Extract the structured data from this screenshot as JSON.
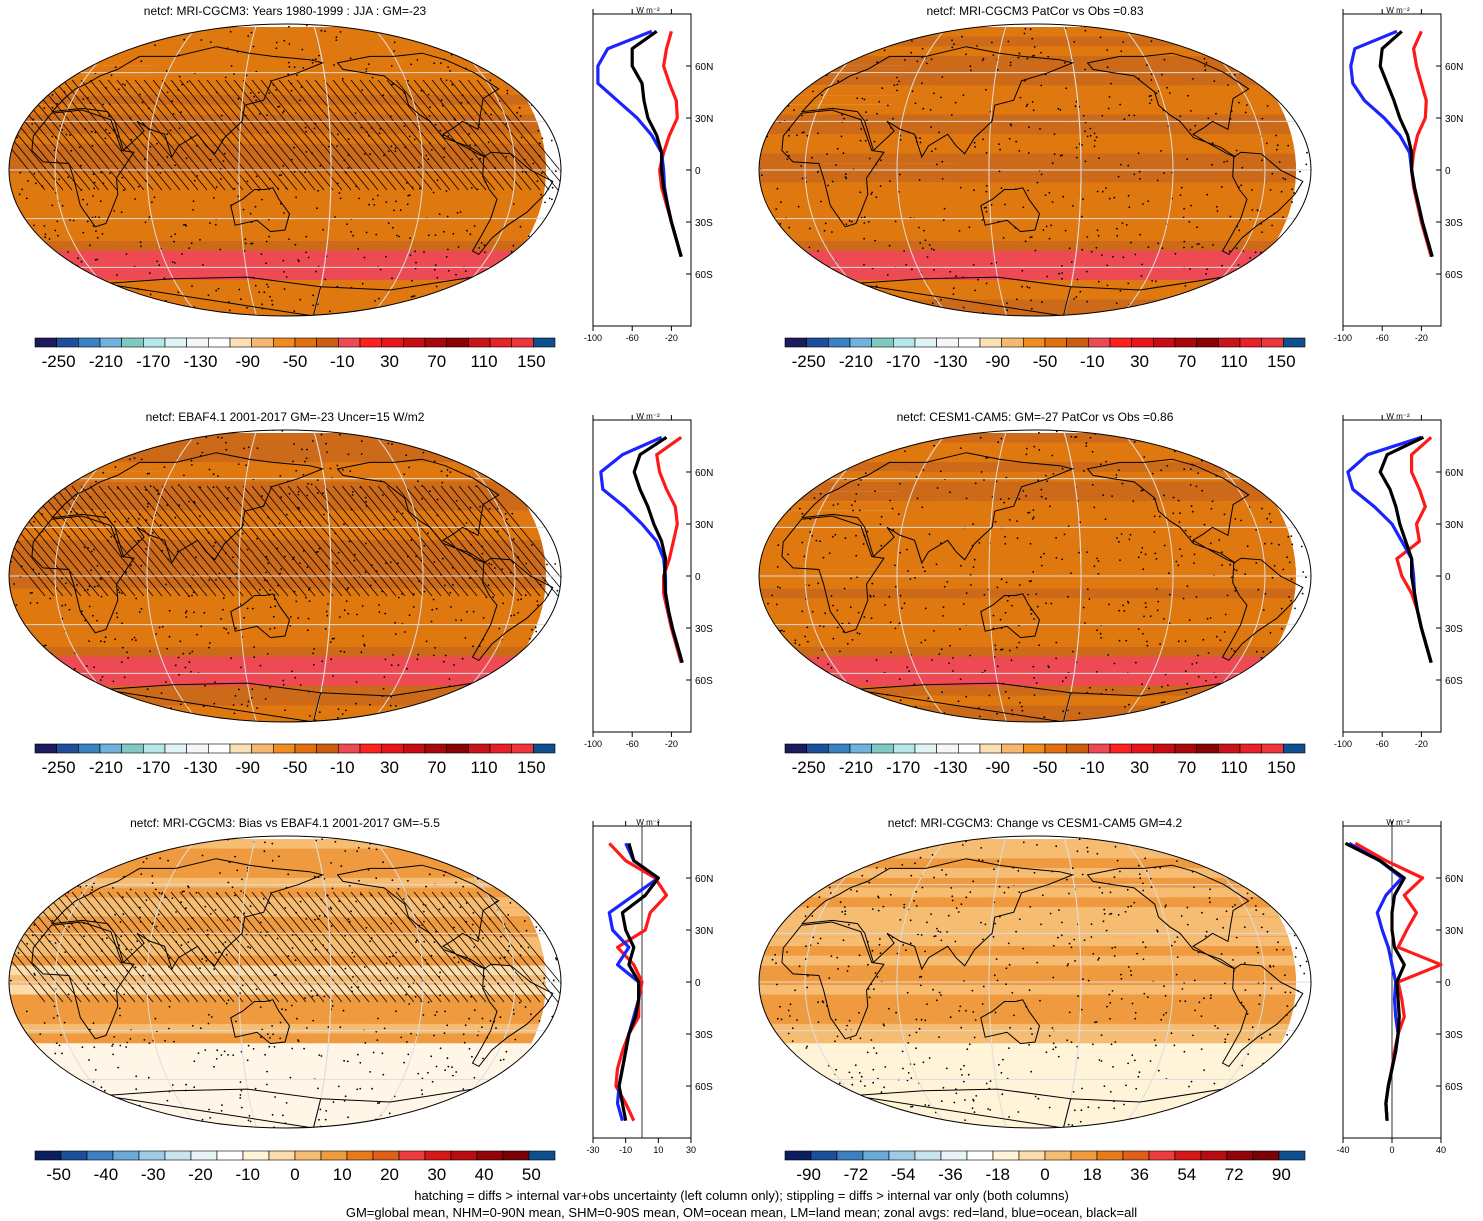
{
  "panels": [
    {
      "id": "model-clim",
      "title": "netcf: MRI-CGCM3: Years 1980-1999 : JJA : GM=-23",
      "field": "clim",
      "hatching": true,
      "colorbar": {
        "labels": [
          "-250",
          "-210",
          "-170",
          "-130",
          "-90",
          "-50",
          "-10",
          "30",
          "70",
          "110",
          "150"
        ],
        "colors": [
          "#1b1b5e",
          "#1d4f9c",
          "#3a82c4",
          "#6fb2dd",
          "#7fcac0",
          "#b5e6ea",
          "#e0f4f6",
          "#f6f6f6",
          "#ffffff",
          "#fbe0b4",
          "#f6b86e",
          "#f08c20",
          "#e07010",
          "#cc5d10",
          "#ee4a54",
          "#ff2020",
          "#e8141a",
          "#c80c12",
          "#a8080a",
          "#8a0204",
          "#c8141a",
          "#e82028",
          "#f0343c",
          "#0e4f8e"
        ]
      },
      "profile": {
        "x_tick_labels": [
          "-100",
          "-60",
          "-20"
        ],
        "y_tick_labels": [
          "60N",
          "30N",
          "0",
          "30S",
          "60S"
        ],
        "unit": "W m⁻²",
        "xlim": [
          -100,
          0
        ]
      }
    },
    {
      "id": "model-patcor",
      "title": "netcf: MRI-CGCM3 PatCor vs Obs =0.83",
      "field": "clim",
      "hatching": false,
      "colorbar": {
        "labels": [
          "-250",
          "-210",
          "-170",
          "-130",
          "-90",
          "-50",
          "-10",
          "30",
          "70",
          "110",
          "150"
        ],
        "colors": [
          "#1b1b5e",
          "#1d4f9c",
          "#3a82c4",
          "#6fb2dd",
          "#7fcac0",
          "#b5e6ea",
          "#e0f4f6",
          "#f6f6f6",
          "#ffffff",
          "#fbe0b4",
          "#f6b86e",
          "#f08c20",
          "#e07010",
          "#cc5d10",
          "#ee4a54",
          "#ff2020",
          "#e8141a",
          "#c80c12",
          "#a8080a",
          "#8a0204",
          "#c8141a",
          "#e82028",
          "#f0343c",
          "#0e4f8e"
        ]
      },
      "profile": {
        "x_tick_labels": [
          "-100",
          "-60",
          "-20"
        ],
        "y_tick_labels": [
          "60N",
          "30N",
          "0",
          "30S",
          "60S"
        ],
        "unit": "W m⁻²",
        "xlim": [
          -100,
          0
        ]
      }
    },
    {
      "id": "obs-clim",
      "title": "netcf: EBAF4.1 2001-2017 GM=-23 Uncer=15 W/m2",
      "field": "clim",
      "hatching": true,
      "colorbar": {
        "labels": [
          "-250",
          "-210",
          "-170",
          "-130",
          "-90",
          "-50",
          "-10",
          "30",
          "70",
          "110",
          "150"
        ],
        "colors": [
          "#1b1b5e",
          "#1d4f9c",
          "#3a82c4",
          "#6fb2dd",
          "#7fcac0",
          "#b5e6ea",
          "#e0f4f6",
          "#f6f6f6",
          "#ffffff",
          "#fbe0b4",
          "#f6b86e",
          "#f08c20",
          "#e07010",
          "#cc5d10",
          "#ee4a54",
          "#ff2020",
          "#e8141a",
          "#c80c12",
          "#a8080a",
          "#8a0204",
          "#c8141a",
          "#e82028",
          "#f0343c",
          "#0e4f8e"
        ]
      },
      "profile": {
        "x_tick_labels": [
          "-100",
          "-60",
          "-20"
        ],
        "y_tick_labels": [
          "60N",
          "30N",
          "0",
          "30S",
          "60S"
        ],
        "unit": "W m⁻²",
        "xlim": [
          -100,
          0
        ]
      }
    },
    {
      "id": "ref-model-clim",
      "title": "netcf: CESM1-CAM5: GM=-27 PatCor vs Obs =0.86",
      "field": "clim",
      "hatching": false,
      "colorbar": {
        "labels": [
          "-250",
          "-210",
          "-170",
          "-130",
          "-90",
          "-50",
          "-10",
          "30",
          "70",
          "110",
          "150"
        ],
        "colors": [
          "#1b1b5e",
          "#1d4f9c",
          "#3a82c4",
          "#6fb2dd",
          "#7fcac0",
          "#b5e6ea",
          "#e0f4f6",
          "#f6f6f6",
          "#ffffff",
          "#fbe0b4",
          "#f6b86e",
          "#f08c20",
          "#e07010",
          "#cc5d10",
          "#ee4a54",
          "#ff2020",
          "#e8141a",
          "#c80c12",
          "#a8080a",
          "#8a0204",
          "#c8141a",
          "#e82028",
          "#f0343c",
          "#0e4f8e"
        ]
      },
      "profile": {
        "x_tick_labels": [
          "-100",
          "-60",
          "-20"
        ],
        "y_tick_labels": [
          "60N",
          "30N",
          "0",
          "30S",
          "60S"
        ],
        "unit": "W m⁻²",
        "xlim": [
          -100,
          0
        ]
      }
    },
    {
      "id": "bias",
      "title": "netcf: MRI-CGCM3: Bias vs EBAF4.1 2001-2017 GM=-5.5",
      "field": "bias",
      "hatching": true,
      "colorbar": {
        "labels": [
          "-50",
          "-40",
          "-30",
          "-20",
          "-10",
          "0",
          "10",
          "20",
          "30",
          "40",
          "50"
        ],
        "colors": [
          "#0b1f5e",
          "#1b4f9c",
          "#3c7fc2",
          "#6aaad8",
          "#9fcbe6",
          "#c8e4ee",
          "#e8f4f6",
          "#ffffff",
          "#fff3d8",
          "#fbdcaa",
          "#f6bc72",
          "#ef9a3e",
          "#e87a1a",
          "#e0601a",
          "#ee3c3c",
          "#d81818",
          "#b80c10",
          "#900608",
          "#7a0206",
          "#0e4f8e"
        ]
      },
      "profile": {
        "x_tick_labels": [
          "-30",
          "-10",
          "10",
          "30"
        ],
        "y_tick_labels": [
          "60N",
          "30N",
          "0",
          "30S",
          "60S"
        ],
        "unit": "W m⁻²",
        "xlim": [
          -30,
          30
        ]
      }
    },
    {
      "id": "change",
      "title": "netcf: MRI-CGCM3: Change vs CESM1-CAM5 GM=4.2",
      "field": "change",
      "hatching": false,
      "colorbar": {
        "labels": [
          "-90",
          "-72",
          "-54",
          "-36",
          "-18",
          "0",
          "18",
          "36",
          "54",
          "72",
          "90"
        ],
        "colors": [
          "#0b1f5e",
          "#1b4f9c",
          "#3c7fc2",
          "#6aaad8",
          "#9fcbe6",
          "#c8e4ee",
          "#e8f4f6",
          "#ffffff",
          "#fff3d8",
          "#fbdcaa",
          "#f6bc72",
          "#ef9a3e",
          "#e87a1a",
          "#e0601a",
          "#ee3c3c",
          "#d81818",
          "#b80c10",
          "#900608",
          "#7a0206",
          "#0e4f8e"
        ]
      },
      "profile": {
        "x_tick_labels": [
          "-40",
          "0",
          "40"
        ],
        "y_tick_labels": [
          "60N",
          "30N",
          "0",
          "30S",
          "60S"
        ],
        "unit": "W m⁻²",
        "xlim": [
          -40,
          40
        ]
      }
    }
  ],
  "footer": {
    "line1": "hatching = diffs > internal var+obs uncertainty (left column only); stippling = diffs > internal var only (both columns)",
    "line2": "GM=global mean, NHM=0-90N mean, SHM=0-90S mean, OM=ocean mean, LM=land mean; zonal avgs: red=land, blue=ocean, black=all"
  },
  "chart_data": [
    {
      "type": "line",
      "title": "netcf: MRI-CGCM3: Years 1980-1999 : JJA : GM=-23",
      "xlabel": "W m⁻²",
      "ylabel": "",
      "xlim": [
        -100,
        0
      ],
      "ylim": [
        -90,
        90
      ],
      "y": [
        80,
        70,
        60,
        50,
        40,
        30,
        20,
        10,
        0,
        -10,
        -20,
        -30,
        -40,
        -50
      ],
      "series": [
        {
          "name": "land",
          "values": [
            -20,
            -25,
            -28,
            -22,
            -15,
            -14,
            -22,
            -28,
            -32,
            -30,
            -25,
            -20,
            -15,
            -10
          ]
        },
        {
          "name": "ocean",
          "values": [
            -40,
            -85,
            -95,
            -95,
            -75,
            -55,
            -40,
            -30,
            -28,
            -27,
            -24,
            -20,
            -15,
            -10
          ]
        },
        {
          "name": "all",
          "values": [
            -35,
            -60,
            -60,
            -50,
            -48,
            -44,
            -35,
            -30,
            -30,
            -28,
            -24,
            -20,
            -15,
            -10
          ]
        }
      ]
    },
    {
      "type": "line",
      "title": "netcf: MRI-CGCM3 PatCor vs Obs =0.83",
      "xlabel": "W m⁻²",
      "ylabel": "",
      "xlim": [
        -100,
        0
      ],
      "ylim": [
        -90,
        90
      ],
      "y": [
        80,
        70,
        60,
        50,
        40,
        30,
        20,
        10,
        0,
        -10,
        -20,
        -30,
        -40,
        -50
      ],
      "series": [
        {
          "name": "land",
          "values": [
            -20,
            -28,
            -25,
            -20,
            -15,
            -16,
            -24,
            -28,
            -30,
            -28,
            -24,
            -20,
            -15,
            -10
          ]
        },
        {
          "name": "ocean",
          "values": [
            -45,
            -88,
            -92,
            -90,
            -78,
            -58,
            -42,
            -32,
            -30,
            -27,
            -23,
            -19,
            -14,
            -9
          ]
        },
        {
          "name": "all",
          "values": [
            -40,
            -60,
            -62,
            -55,
            -48,
            -42,
            -34,
            -30,
            -30,
            -27,
            -23,
            -19,
            -14,
            -9
          ]
        }
      ]
    },
    {
      "type": "line",
      "title": "netcf: EBAF4.1 2001-2017 GM=-23 Uncer=15 W/m2",
      "xlabel": "W m⁻²",
      "ylabel": "",
      "xlim": [
        -100,
        0
      ],
      "ylim": [
        -90,
        90
      ],
      "y": [
        80,
        70,
        60,
        50,
        40,
        30,
        20,
        10,
        0,
        -10,
        -20,
        -30,
        -40,
        -50
      ],
      "series": [
        {
          "name": "land",
          "values": [
            -10,
            -35,
            -32,
            -25,
            -16,
            -14,
            -18,
            -22,
            -28,
            -28,
            -24,
            -20,
            -15,
            -10
          ]
        },
        {
          "name": "ocean",
          "values": [
            -30,
            -70,
            -92,
            -90,
            -68,
            -50,
            -35,
            -28,
            -26,
            -26,
            -23,
            -19,
            -14,
            -9
          ]
        },
        {
          "name": "all",
          "values": [
            -25,
            -52,
            -58,
            -52,
            -44,
            -38,
            -30,
            -26,
            -27,
            -26,
            -23,
            -19,
            -14,
            -9
          ]
        }
      ]
    },
    {
      "type": "line",
      "title": "netcf: CESM1-CAM5: GM=-27 PatCor vs Obs =0.86",
      "xlabel": "W m⁻²",
      "ylabel": "",
      "xlim": [
        -100,
        0
      ],
      "ylim": [
        -90,
        90
      ],
      "y": [
        80,
        70,
        60,
        50,
        40,
        30,
        20,
        10,
        0,
        -10,
        -20,
        -30,
        -40,
        -50
      ],
      "series": [
        {
          "name": "land",
          "values": [
            -10,
            -30,
            -30,
            -22,
            -16,
            -25,
            -22,
            -45,
            -40,
            -30,
            -24,
            -20,
            -15,
            -10
          ]
        },
        {
          "name": "ocean",
          "values": [
            -20,
            -75,
            -95,
            -90,
            -68,
            -50,
            -40,
            -30,
            -28,
            -27,
            -24,
            -20,
            -15,
            -10
          ]
        },
        {
          "name": "all",
          "values": [
            -18,
            -55,
            -62,
            -52,
            -46,
            -42,
            -36,
            -30,
            -30,
            -27,
            -24,
            -20,
            -15,
            -10
          ]
        }
      ]
    },
    {
      "type": "line",
      "title": "netcf: MRI-CGCM3: Bias vs EBAF4.1 2001-2017 GM=-5.5",
      "xlabel": "W m⁻²",
      "ylabel": "",
      "xlim": [
        -30,
        30
      ],
      "ylim": [
        -90,
        90
      ],
      "y": [
        80,
        70,
        60,
        50,
        40,
        30,
        20,
        10,
        0,
        -10,
        -20,
        -30,
        -40,
        -50,
        -60,
        -70,
        -80
      ],
      "series": [
        {
          "name": "land",
          "values": [
            -20,
            -10,
            8,
            15,
            5,
            2,
            -15,
            -5,
            0,
            -2,
            -2,
            -8,
            -12,
            -15,
            -16,
            -10,
            -5
          ]
        },
        {
          "name": "ocean",
          "values": [
            -10,
            -5,
            10,
            -5,
            -20,
            -18,
            -8,
            -15,
            -2,
            -2,
            -5,
            -8,
            -10,
            -12,
            -14,
            -15,
            -12
          ]
        },
        {
          "name": "all",
          "values": [
            -8,
            -5,
            10,
            2,
            -12,
            -10,
            -5,
            -8,
            -2,
            -2,
            -4,
            -8,
            -10,
            -12,
            -14,
            -12,
            -10
          ]
        }
      ]
    },
    {
      "type": "line",
      "title": "netcf: MRI-CGCM3: Change vs CESM1-CAM5 GM=4.2",
      "xlabel": "W m⁻²",
      "ylabel": "",
      "xlim": [
        -40,
        40
      ],
      "ylim": [
        -90,
        90
      ],
      "y": [
        80,
        70,
        60,
        50,
        40,
        30,
        20,
        10,
        0,
        -10,
        -20,
        -30,
        -40,
        -50,
        -60,
        -70,
        -80
      ],
      "series": [
        {
          "name": "land",
          "values": [
            -30,
            -5,
            25,
            10,
            20,
            12,
            5,
            40,
            5,
            8,
            10,
            5,
            2,
            0,
            -3,
            -5,
            -4
          ]
        },
        {
          "name": "ocean",
          "values": [
            -35,
            -10,
            8,
            -5,
            -12,
            -8,
            -3,
            0,
            3,
            2,
            3,
            5,
            3,
            0,
            -3,
            -5,
            -4
          ]
        },
        {
          "name": "all",
          "values": [
            -38,
            -10,
            10,
            2,
            0,
            0,
            2,
            10,
            4,
            5,
            6,
            5,
            3,
            0,
            -3,
            -5,
            -4
          ]
        }
      ]
    }
  ]
}
